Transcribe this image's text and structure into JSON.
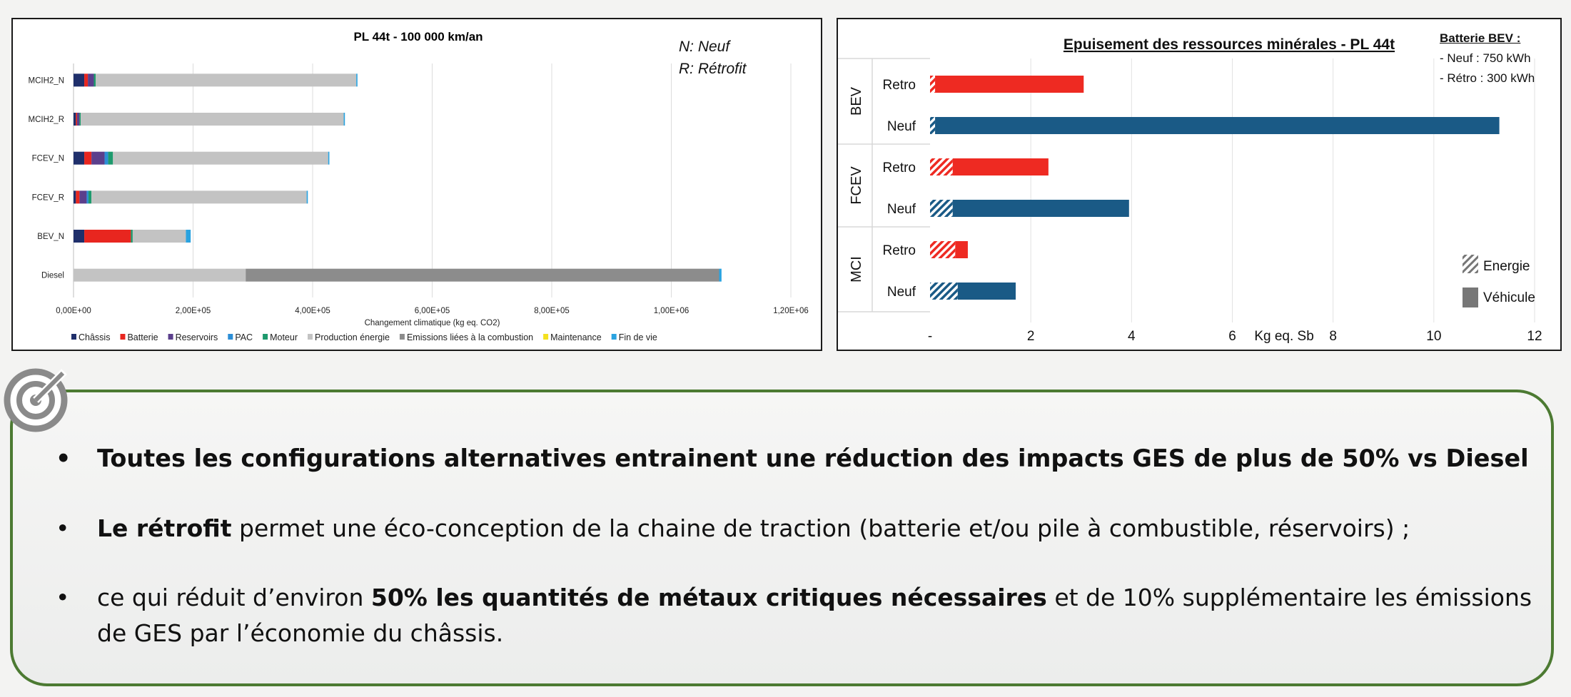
{
  "colors": {
    "chassis": "#1f2f6b",
    "batterie": "#e8261f",
    "reservoirs": "#5b3f8c",
    "pac": "#2c8ed6",
    "moteur": "#1e9a6d",
    "production": "#c3c3c3",
    "emissions": "#8c8c8c",
    "maintenance": "#f4e11f",
    "finvie": "#2aa3e0",
    "retro_bar": "#ee2a22",
    "neuf_bar": "#1a5a86",
    "green_border": "#4c7a32"
  },
  "left_note": {
    "line1": "N: Neuf",
    "line2": "R: Rétrofit"
  },
  "right_note": {
    "header": "Batterie BEV :",
    "item1": "Neuf : 750 kWh",
    "item2": "Rétro : 300 kWh"
  },
  "chart_data": [
    {
      "type": "bar",
      "orientation": "horizontal",
      "stacked": true,
      "title": "PL 44t - 100 000 km/an",
      "xlabel": "Changement climatique (kg eq. CO2)",
      "xlim": [
        0,
        1200000
      ],
      "xticks": [
        0,
        200000,
        400000,
        600000,
        800000,
        1000000,
        1200000
      ],
      "xtick_labels": [
        "0,00E+00",
        "2,00E+05",
        "4,00E+05",
        "6,00E+05",
        "8,00E+05",
        "1,00E+06",
        "1,20E+06"
      ],
      "grid": true,
      "legend_position": "bottom",
      "categories": [
        "MCIH2_N",
        "MCIH2_R",
        "FCEV_N",
        "FCEV_R",
        "BEV_N",
        "Diesel"
      ],
      "series": [
        {
          "name": "Châssis",
          "color_key": "chassis",
          "values": [
            18000,
            4000,
            18000,
            4000,
            18000,
            0
          ]
        },
        {
          "name": "Batterie",
          "color_key": "batterie",
          "values": [
            6000,
            2000,
            12000,
            6000,
            78000,
            0
          ]
        },
        {
          "name": "Reservoirs",
          "color_key": "reservoirs",
          "values": [
            10000,
            4000,
            22000,
            12000,
            0,
            0
          ]
        },
        {
          "name": "PAC",
          "color_key": "pac",
          "values": [
            0,
            0,
            6000,
            3000,
            0,
            0
          ]
        },
        {
          "name": "Moteur",
          "color_key": "moteur",
          "values": [
            3000,
            2000,
            8000,
            5000,
            3000,
            0
          ]
        },
        {
          "name": "Production énergie",
          "color_key": "production",
          "values": [
            436000,
            440000,
            360000,
            360000,
            89000,
            288000
          ]
        },
        {
          "name": "Emissions liées à la combustion",
          "color_key": "emissions",
          "values": [
            0,
            0,
            0,
            0,
            0,
            792000
          ]
        },
        {
          "name": "Maintenance",
          "color_key": "maintenance",
          "values": [
            0,
            0,
            0,
            0,
            0,
            0
          ]
        },
        {
          "name": "Fin de vie",
          "color_key": "finvie",
          "values": [
            2000,
            2000,
            2000,
            2000,
            8000,
            4000
          ]
        }
      ]
    },
    {
      "type": "bar",
      "orientation": "horizontal",
      "stacked": true,
      "title": "Epuisement des ressources minérales - PL 44t",
      "xlabel": "Kg eq. Sb",
      "xlim": [
        0,
        12
      ],
      "xticks": [
        0,
        2,
        4,
        6,
        8,
        10,
        12
      ],
      "xtick_labels": [
        "-",
        "2",
        "4",
        "6",
        "8",
        "10",
        "12"
      ],
      "grid": true,
      "groups": [
        "BEV",
        "FCEV",
        "MCI"
      ],
      "categories": [
        "Retro",
        "Neuf",
        "Retro",
        "Neuf",
        "Retro",
        "Neuf"
      ],
      "category_groups": [
        "BEV",
        "BEV",
        "FCEV",
        "FCEV",
        "MCI",
        "MCI"
      ],
      "series": [
        {
          "name": "Energie",
          "values": [
            0.1,
            0.1,
            0.45,
            0.45,
            0.5,
            0.55
          ]
        },
        {
          "name": "Véhicule",
          "values": [
            2.95,
            11.2,
            1.9,
            3.5,
            0.25,
            1.15
          ]
        }
      ],
      "legend": [
        "Energie",
        "Véhicule"
      ]
    }
  ],
  "bullets": [
    {
      "text": "Toutes les configurations alternatives entrainent une réduction des impacts GES de plus de 50%  vs  Diesel"
    },
    {
      "bold": "Le rétrofit",
      "text": " permet une éco-conception de la chaine de traction (batterie et/ou pile à combustible, réservoirs) ;"
    },
    {
      "pre": "ce qui réduit d’environ ",
      "bold": "50% les quantités de métaux critiques nécessaires",
      "post": " et de 10% supplémentaire les émissions de GES par l’économie du châssis."
    }
  ]
}
